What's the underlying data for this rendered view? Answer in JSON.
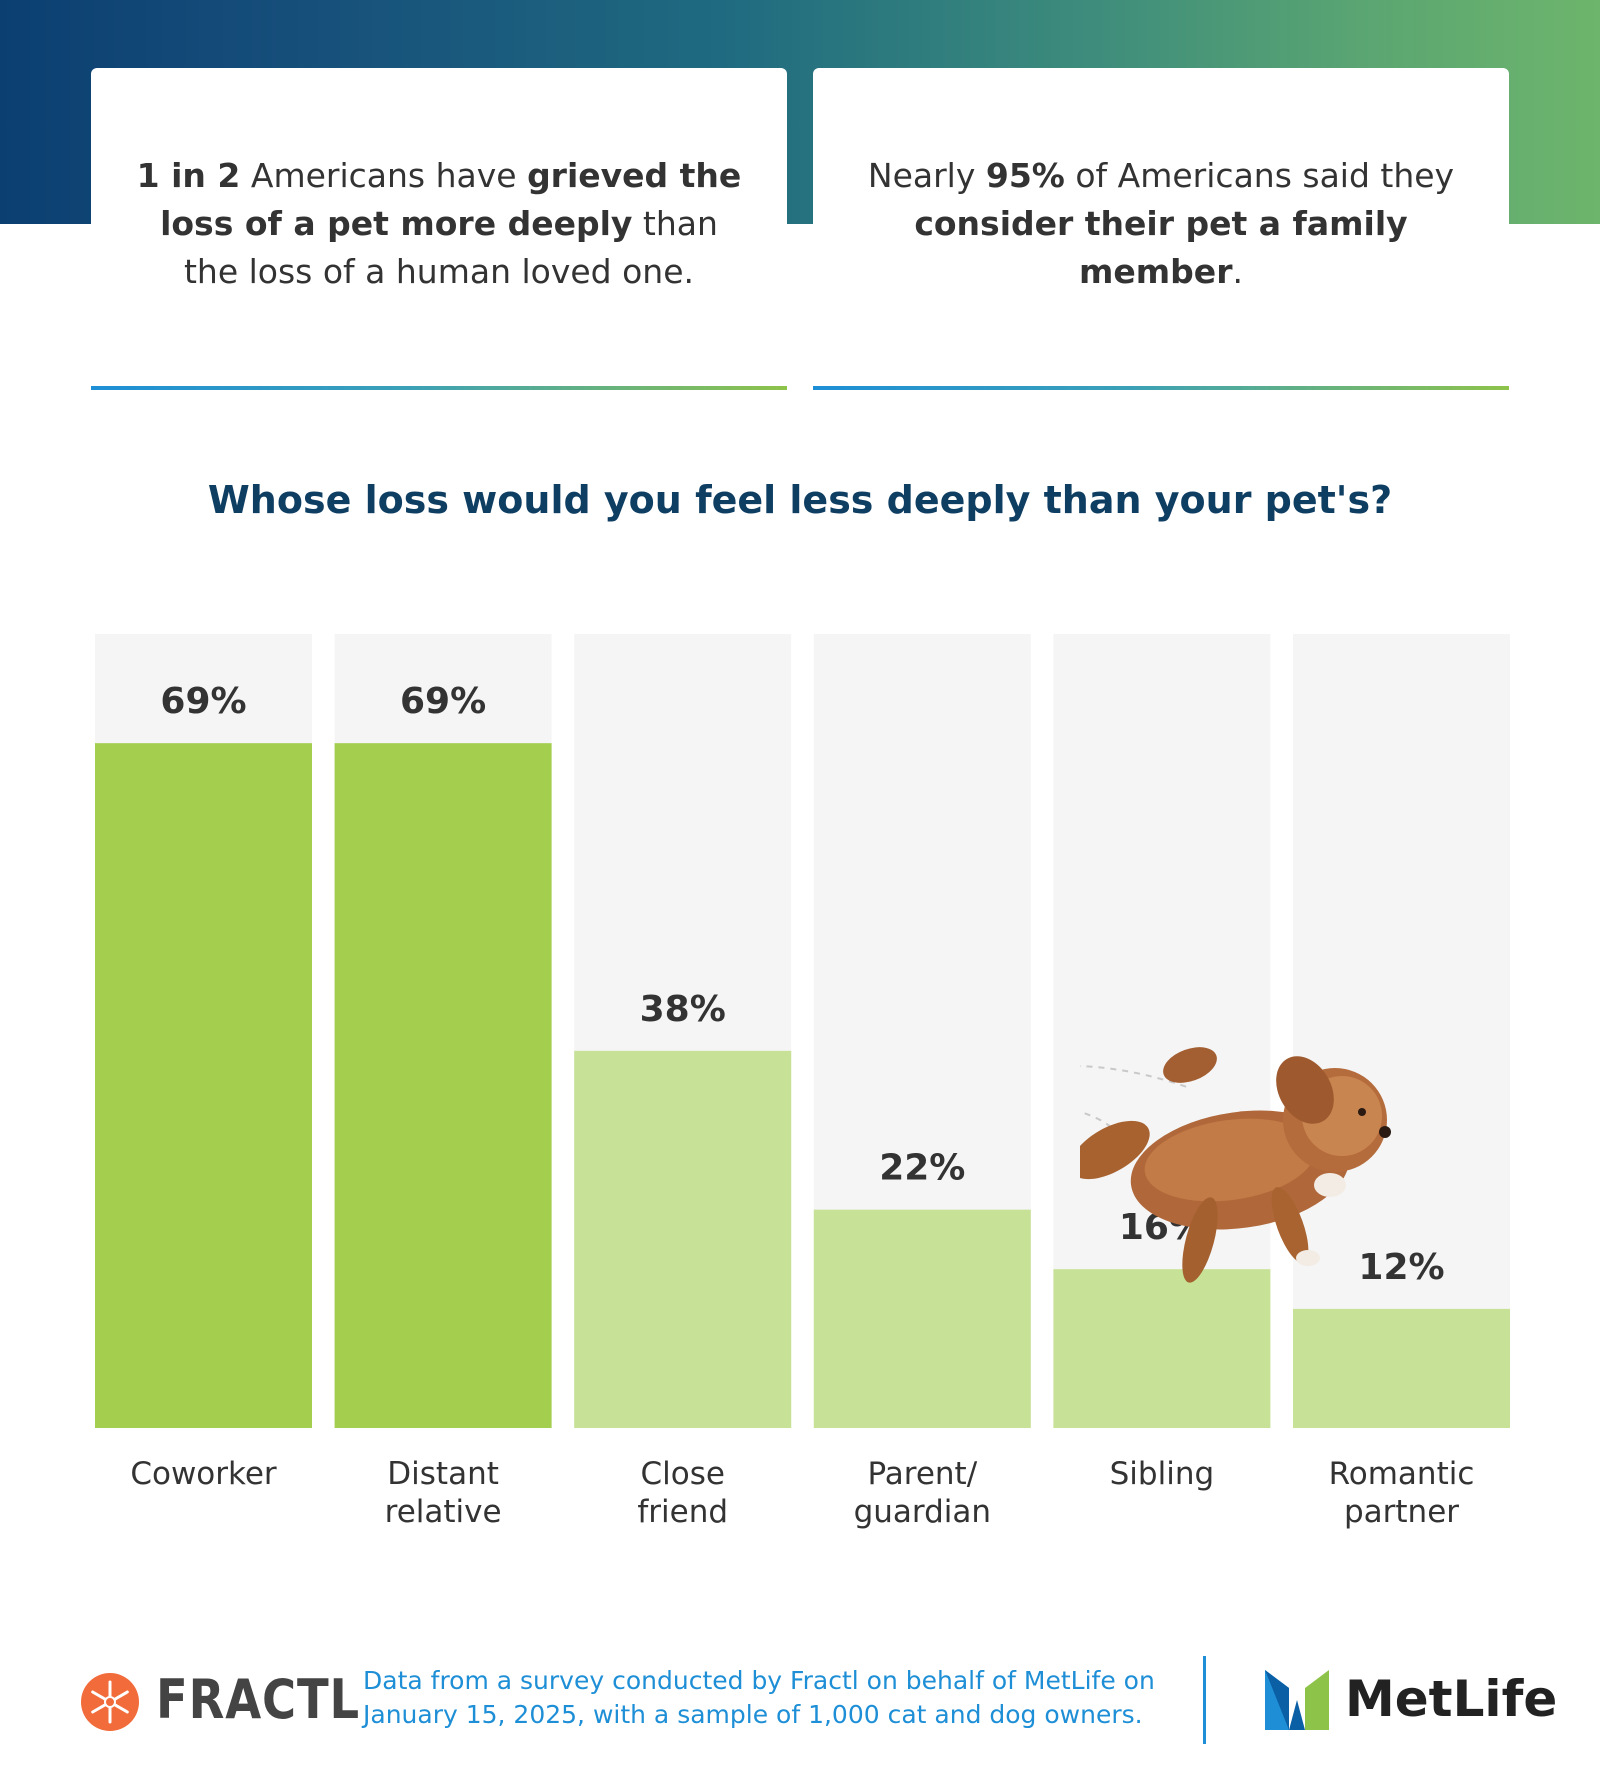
{
  "cards": [
    {
      "parts": [
        {
          "text": "1 in 2",
          "bold": true
        },
        {
          "text": " Americans have ",
          "bold": false
        },
        {
          "text": "grieved the loss of a pet more deeply",
          "bold": true
        },
        {
          "text": " than the loss of a human loved one.",
          "bold": false
        }
      ]
    },
    {
      "parts": [
        {
          "text": "Nearly ",
          "bold": false
        },
        {
          "text": "95%",
          "bold": true
        },
        {
          "text": " of Americans said they ",
          "bold": false
        },
        {
          "text": "consider their pet a family member",
          "bold": true
        },
        {
          "text": ".",
          "bold": false
        }
      ]
    }
  ],
  "chart_data": {
    "type": "bar",
    "title": "Whose loss would you feel less deeply than your pet's?",
    "categories": [
      "Coworker",
      "Distant relative",
      "Close friend",
      "Parent/ guardian",
      "Sibling",
      "Romantic partner"
    ],
    "category_lines": [
      [
        "Coworker"
      ],
      [
        "Distant",
        "relative"
      ],
      [
        "Close",
        "friend"
      ],
      [
        "Parent/",
        "guardian"
      ],
      [
        "Sibling"
      ],
      [
        "Romantic",
        "partner"
      ]
    ],
    "values": [
      69,
      69,
      38,
      22,
      16,
      12
    ],
    "value_labels": [
      "69%",
      "69%",
      "38%",
      "22%",
      "16%",
      "12%"
    ],
    "ylim": [
      0,
      80
    ],
    "grid": false,
    "colors": {
      "highlight": "#a4ce4e",
      "normal": "#c7e296",
      "track": "#f5f5f5"
    },
    "highlighted": [
      true,
      true,
      false,
      false,
      false,
      false
    ]
  },
  "footer": {
    "brand_left": "FRACTL",
    "source": "Data from a survey conducted by Fractl on behalf of MetLife on January 15, 2025, with a sample of 1,000 cat and dog owners.",
    "brand_right": "MetLife"
  },
  "icons": {
    "fractl": "snowflake-icon",
    "metlife": "metlife-m-icon",
    "illustration": "dog-icon"
  }
}
